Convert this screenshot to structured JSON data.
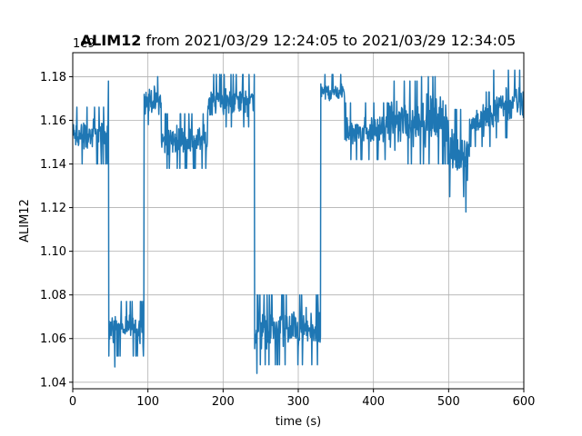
{
  "chart_data": {
    "type": "line",
    "title_bold": "ALIM12",
    "title_rest": " from 2021/03/29 12:24:05 to 2021/03/29 12:34:05",
    "xlabel": "time (s)",
    "ylabel": "ALIM12",
    "offset_label": "1e9",
    "xlim": [
      0,
      600
    ],
    "ylim": [
      1.037,
      1.191
    ],
    "xticks": [
      0,
      100,
      200,
      300,
      400,
      500,
      600
    ],
    "yticks": [
      1.04,
      1.06,
      1.08,
      1.1,
      1.12,
      1.14,
      1.16,
      1.18
    ],
    "ytick_labels": [
      "1.04",
      "1.06",
      "1.08",
      "1.10",
      "1.12",
      "1.14",
      "1.16",
      "1.18"
    ],
    "grid": true,
    "line_color": "#1f77b4",
    "series": [
      {
        "segments": [
          {
            "x0": 0,
            "x1": 47,
            "low": 1.14,
            "high": 1.166
          },
          {
            "x0": 47,
            "x1": 48,
            "low": 1.152,
            "high": 1.178
          },
          {
            "x0": 48,
            "x1": 95,
            "low": 1.052,
            "high": 1.077
          },
          {
            "x0": 95,
            "x1": 118,
            "low": 1.158,
            "high": 1.18
          },
          {
            "x0": 118,
            "x1": 180,
            "low": 1.138,
            "high": 1.163
          },
          {
            "x0": 180,
            "x1": 242,
            "low": 1.157,
            "high": 1.181
          },
          {
            "x0": 242,
            "x1": 330,
            "low": 1.048,
            "high": 1.08
          },
          {
            "x0": 330,
            "x1": 362,
            "low": 1.165,
            "high": 1.181
          },
          {
            "x0": 362,
            "x1": 420,
            "low": 1.142,
            "high": 1.168
          },
          {
            "x0": 420,
            "x1": 460,
            "low": 1.14,
            "high": 1.178
          },
          {
            "x0": 460,
            "x1": 500,
            "low": 1.14,
            "high": 1.18
          },
          {
            "x0": 500,
            "x1": 528,
            "low": 1.125,
            "high": 1.165
          },
          {
            "x0": 528,
            "x1": 560,
            "low": 1.148,
            "high": 1.173
          },
          {
            "x0": 560,
            "x1": 600,
            "low": 1.152,
            "high": 1.183
          }
        ],
        "min_point": {
          "x": 523,
          "y": 1.118
        },
        "low_points": [
          {
            "x": 245,
            "y": 1.044
          },
          {
            "x": 56,
            "y": 1.047
          }
        ]
      }
    ]
  }
}
